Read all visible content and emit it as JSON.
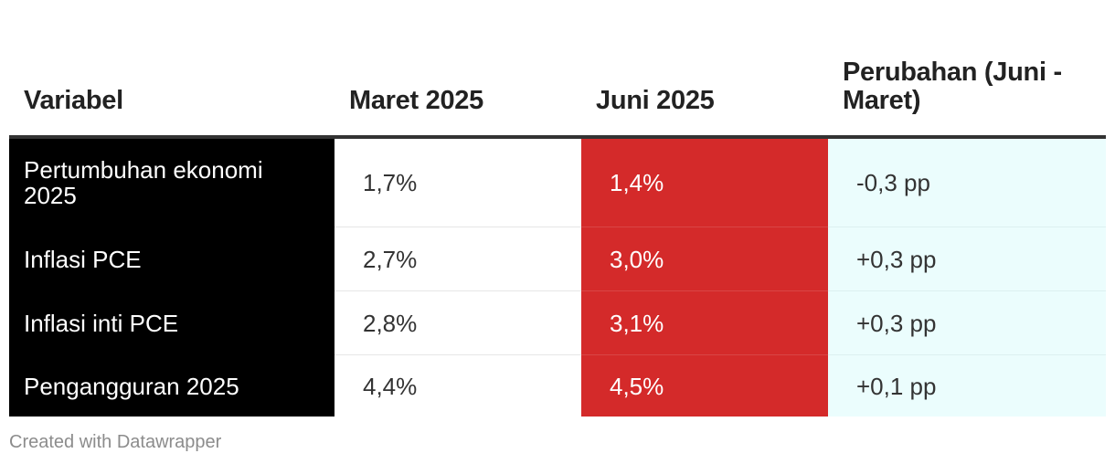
{
  "chart_data": {
    "type": "table",
    "columns": [
      "Variabel",
      "Maret 2025",
      "Juni 2025",
      "Perubahan (Juni - Maret)"
    ],
    "rows": [
      [
        "Pertumbuhan ekonomi 2025",
        "1,7%",
        "1,4%",
        "-0,3 pp"
      ],
      [
        "Inflasi PCE",
        "2,7%",
        "3,0%",
        "+0,3 pp"
      ],
      [
        "Inflasi inti PCE",
        "2,8%",
        "3,1%",
        "+0,3 pp"
      ],
      [
        "Pengangguran 2025",
        "4,4%",
        "4,5%",
        "+0,1 pp"
      ]
    ],
    "column_colors": [
      "#000000",
      "#ffffff",
      "#d42a2a",
      "#ebfdfd"
    ]
  },
  "footer": "Created with Datawrapper"
}
